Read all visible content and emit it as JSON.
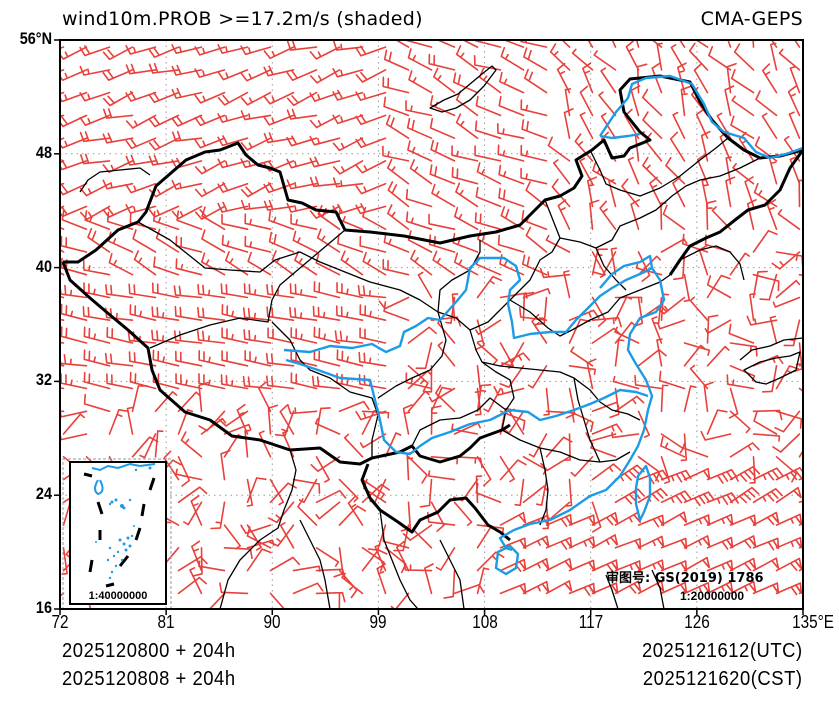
{
  "header": {
    "title": "wind10m.PROB >=17.2m/s (shaded)",
    "model": "CMA-GEPS"
  },
  "map": {
    "extent": {
      "lon_min": 72,
      "lon_max": 135,
      "lat_min": 16,
      "lat_max": 56
    },
    "lat_ticks": [
      {
        "label": "56°N",
        "lat": 56
      },
      {
        "label": "48",
        "lat": 48
      },
      {
        "label": "40",
        "lat": 40
      },
      {
        "label": "32",
        "lat": 32
      },
      {
        "label": "24",
        "lat": 24
      },
      {
        "label": "16",
        "lat": 16
      }
    ],
    "lon_ticks": [
      {
        "label": "72",
        "lon": 72
      },
      {
        "label": "81",
        "lon": 81
      },
      {
        "label": "90",
        "lon": 90
      },
      {
        "label": "99",
        "lon": 99
      },
      {
        "label": "108",
        "lon": 108
      },
      {
        "label": "117",
        "lon": 117
      },
      {
        "label": "126",
        "lon": 126
      },
      {
        "label": "135°E",
        "lon": 135
      }
    ],
    "colors": {
      "barb": "#e8403a",
      "river": "#1e9be6",
      "border": "#000000",
      "grid": "#9a9a9a"
    },
    "inset": {
      "scale_label": "1:40000000"
    },
    "map_review": {
      "label": "审图号: GS(2019) 1786",
      "scale_label": "1:20000000"
    }
  },
  "footer": {
    "init_utc": "2025120800 + 204h",
    "init_cst": "2025120808 + 204h",
    "valid_utc": "2025121612(UTC)",
    "valid_cst": "2025121620(CST)"
  }
}
